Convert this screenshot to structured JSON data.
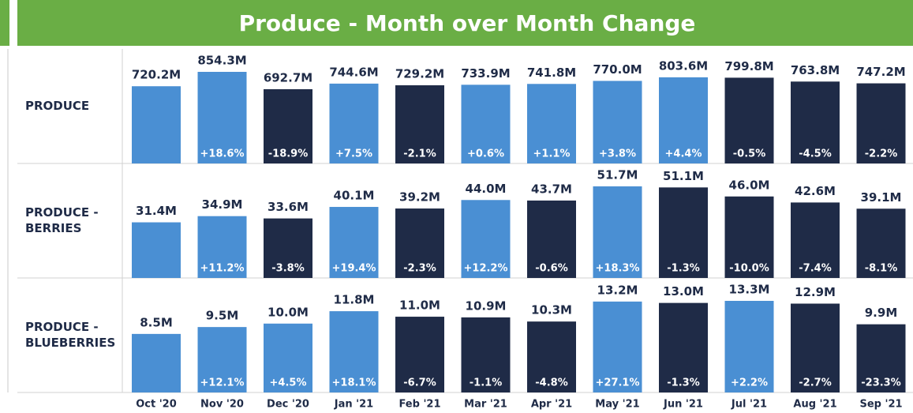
{
  "title": "Produce - Month over Month Change",
  "categories": [
    "Oct '20",
    "Nov '20",
    "Dec '20",
    "Jan '21",
    "Feb '21",
    "Mar '21",
    "Apr '21",
    "May '21",
    "Jun '21",
    "Jul '21",
    "Aug '21",
    "Sep '21"
  ],
  "up_color": "#4a8fd3",
  "down_color": "#1f2b47",
  "chart_data": [
    {
      "type": "bar",
      "name": [
        "PRODUCE"
      ],
      "values": [
        720.2,
        854.3,
        692.7,
        744.6,
        729.2,
        733.9,
        741.8,
        770.0,
        803.6,
        799.8,
        763.8,
        747.2
      ],
      "value_labels": [
        "720.2M",
        "854.3M",
        "692.7M",
        "744.6M",
        "729.2M",
        "733.9M",
        "741.8M",
        "770.0M",
        "803.6M",
        "799.8M",
        "763.8M",
        "747.2M"
      ],
      "changes": [
        null,
        18.6,
        -18.9,
        7.5,
        -2.1,
        0.6,
        1.1,
        3.8,
        4.4,
        -0.5,
        -4.5,
        -2.2
      ],
      "change_labels": [
        null,
        "+18.6%",
        "-18.9%",
        "+7.5%",
        "-2.1%",
        "+0.6%",
        "+1.1%",
        "+3.8%",
        "+4.4%",
        "-0.5%",
        "-4.5%",
        "-2.2%"
      ]
    },
    {
      "type": "bar",
      "name": [
        "PRODUCE -",
        "BERRIES"
      ],
      "values": [
        31.4,
        34.9,
        33.6,
        40.1,
        39.2,
        44.0,
        43.7,
        51.7,
        51.1,
        46.0,
        42.6,
        39.1
      ],
      "value_labels": [
        "31.4M",
        "34.9M",
        "33.6M",
        "40.1M",
        "39.2M",
        "44.0M",
        "43.7M",
        "51.7M",
        "51.1M",
        "46.0M",
        "42.6M",
        "39.1M"
      ],
      "changes": [
        null,
        11.2,
        -3.8,
        19.4,
        -2.3,
        12.2,
        -0.6,
        18.3,
        -1.3,
        -10.0,
        -7.4,
        -8.1
      ],
      "change_labels": [
        null,
        "+11.2%",
        "-3.8%",
        "+19.4%",
        "-2.3%",
        "+12.2%",
        "-0.6%",
        "+18.3%",
        "-1.3%",
        "-10.0%",
        "-7.4%",
        "-8.1%"
      ]
    },
    {
      "type": "bar",
      "name": [
        "PRODUCE -",
        "BLUEBERRIES"
      ],
      "values": [
        8.5,
        9.5,
        10.0,
        11.8,
        11.0,
        10.9,
        10.3,
        13.2,
        13.0,
        13.3,
        12.9,
        9.9
      ],
      "value_labels": [
        "8.5M",
        "9.5M",
        "10.0M",
        "11.8M",
        "11.0M",
        "10.9M",
        "10.3M",
        "13.2M",
        "13.0M",
        "13.3M",
        "12.9M",
        "9.9M"
      ],
      "changes": [
        null,
        12.1,
        4.5,
        18.1,
        -6.7,
        -1.1,
        -4.8,
        27.1,
        -1.3,
        2.2,
        -2.7,
        -23.3
      ],
      "change_labels": [
        null,
        "+12.1%",
        "+4.5%",
        "+18.1%",
        "-6.7%",
        "-1.1%",
        "-4.8%",
        "+27.1%",
        "-1.3%",
        "+2.2%",
        "-2.7%",
        "-23.3%"
      ]
    }
  ]
}
